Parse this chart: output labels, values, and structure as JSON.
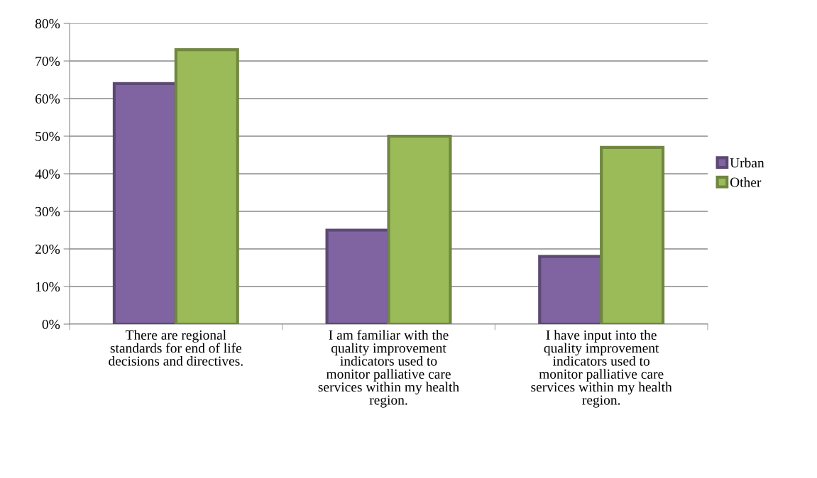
{
  "chart_data": {
    "type": "bar",
    "categories": [
      "There are regional\nstandards for end of life\ndecisions and directives.",
      "I am familiar with the\nquality improvement\nindicators used to\nmonitor palliative care\nservices within my health\nregion.",
      "I have input into the\nquality improvement\nindicators used to\nmonitor palliative care\nservices within my health\nregion."
    ],
    "series": [
      {
        "name": "Urban",
        "color": "#8064a2",
        "values": [
          64,
          25,
          18
        ]
      },
      {
        "name": "Other",
        "color": "#9bbb59",
        "values": [
          73,
          50,
          47
        ]
      }
    ],
    "ylim": [
      0,
      80
    ],
    "yticks": [
      {
        "value": 0,
        "label": "0%"
      },
      {
        "value": 10,
        "label": "10%"
      },
      {
        "value": 20,
        "label": "20%"
      },
      {
        "value": 30,
        "label": "30%"
      },
      {
        "value": 40,
        "label": "40%"
      },
      {
        "value": 50,
        "label": "50%"
      },
      {
        "value": 60,
        "label": "60%"
      },
      {
        "value": 70,
        "label": "70%"
      },
      {
        "value": 80,
        "label": "80%"
      }
    ],
    "grid": "y",
    "legend": "right"
  }
}
